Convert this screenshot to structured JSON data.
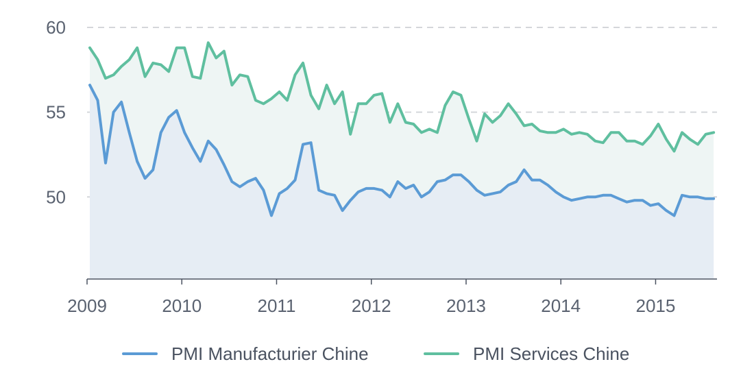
{
  "chart_data": {
    "type": "area",
    "title": "",
    "xlabel": "",
    "ylabel": "",
    "x_start": "2009-01",
    "x_tick_labels": [
      "2009",
      "2010",
      "2011",
      "2012",
      "2013",
      "2014",
      "2015"
    ],
    "y_ticks": [
      50,
      55,
      60
    ],
    "y_tick_labels": [
      "50",
      "55",
      "60"
    ],
    "ylim": [
      45.2,
      60
    ],
    "xlim": [
      "2009-01",
      "2015-08"
    ],
    "grid": true,
    "legend_position": "bottom",
    "series": [
      {
        "name": "PMI Manufacturier Chine",
        "color": "#5b9bd5",
        "fill": "#e6edf4",
        "values": [
          56.6,
          55.7,
          52.0,
          55.0,
          55.6,
          53.8,
          52.1,
          51.1,
          51.6,
          53.8,
          54.7,
          55.1,
          53.8,
          52.9,
          52.1,
          53.3,
          52.8,
          51.9,
          50.9,
          50.6,
          50.9,
          51.1,
          50.4,
          48.9,
          50.2,
          50.5,
          51.0,
          53.1,
          53.2,
          50.4,
          50.2,
          50.1,
          49.2,
          49.8,
          50.3,
          50.5,
          50.5,
          50.4,
          50.0,
          50.9,
          50.5,
          50.7,
          50.0,
          50.3,
          50.9,
          51.0,
          51.3,
          51.3,
          50.9,
          50.4,
          50.1,
          50.2,
          50.3,
          50.7,
          50.9,
          51.6,
          51.0,
          51.0,
          50.7,
          50.3,
          50.0,
          49.8,
          49.9,
          50.0,
          50.0,
          50.1,
          50.1,
          49.9,
          49.7,
          49.8,
          49.8,
          49.5,
          49.6,
          49.2,
          48.9,
          50.1,
          50.0,
          50.0,
          49.9,
          49.9
        ]
      },
      {
        "name": "PMI Services Chine",
        "color": "#5fbf9f",
        "fill": "#eef5f4",
        "values": [
          58.8,
          58.1,
          57.0,
          57.2,
          57.7,
          58.1,
          58.8,
          57.1,
          57.9,
          57.8,
          57.4,
          58.8,
          58.8,
          57.1,
          57.0,
          59.1,
          58.2,
          58.6,
          56.6,
          57.2,
          57.1,
          55.7,
          55.5,
          55.8,
          56.2,
          55.7,
          57.2,
          57.9,
          56.0,
          55.2,
          56.6,
          55.5,
          56.2,
          53.7,
          55.5,
          55.5,
          56.0,
          56.1,
          54.4,
          55.5,
          54.4,
          54.3,
          53.8,
          54.0,
          53.8,
          55.4,
          56.2,
          56.0,
          54.6,
          53.3,
          54.9,
          54.4,
          54.8,
          55.5,
          54.9,
          54.2,
          54.3,
          53.9,
          53.8,
          53.8,
          54.0,
          53.7,
          53.8,
          53.7,
          53.3,
          53.2,
          53.8,
          53.8,
          53.3,
          53.3,
          53.1,
          53.6,
          54.3,
          53.4,
          52.7,
          53.8,
          53.4,
          53.1,
          53.7,
          53.8
        ]
      }
    ]
  }
}
